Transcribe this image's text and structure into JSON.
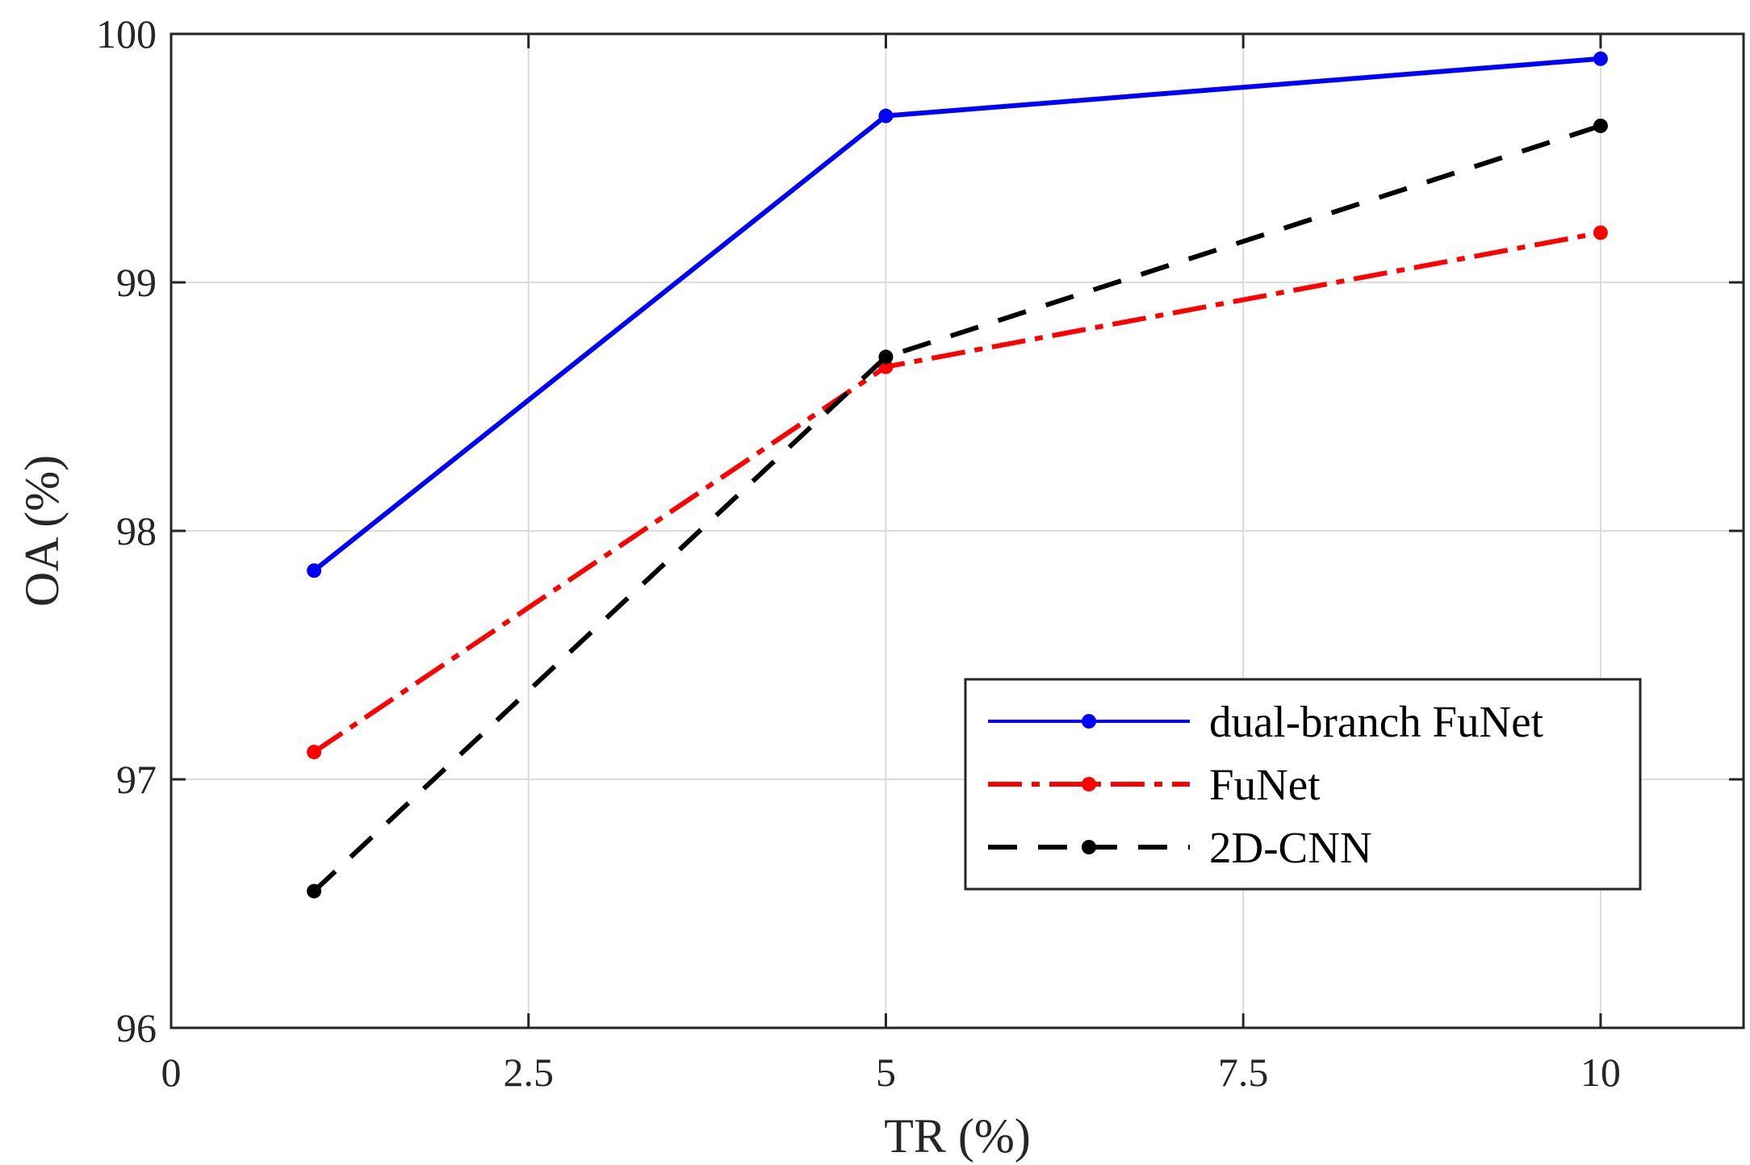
{
  "chart_data": {
    "type": "line",
    "title": "",
    "xlabel": "TR (%)",
    "ylabel": "OA (%)",
    "xlim": [
      0,
      11
    ],
    "ylim": [
      96,
      100
    ],
    "grid": true,
    "legend_position": "bottom-right",
    "x_ticks": [
      0,
      2.5,
      5,
      7.5,
      10
    ],
    "x_tick_labels": [
      "0",
      "2.5",
      "5",
      "7.5",
      "10"
    ],
    "y_ticks": [
      96,
      97,
      98,
      99,
      100
    ],
    "y_tick_labels": [
      "96",
      "97",
      "98",
      "99",
      "100"
    ],
    "series": [
      {
        "name": "dual-branch FuNet",
        "color": "#0000ff",
        "style": "solid",
        "x": [
          1,
          5,
          10
        ],
        "y": [
          97.84,
          99.67,
          99.9
        ]
      },
      {
        "name": "FuNet",
        "color": "#ff0000",
        "style": "dash-dot",
        "x": [
          1,
          5,
          10
        ],
        "y": [
          97.11,
          98.66,
          99.2
        ]
      },
      {
        "name": "2D-CNN",
        "color": "#000000",
        "style": "dashed",
        "x": [
          1,
          5,
          10
        ],
        "y": [
          96.55,
          98.7,
          99.63
        ]
      }
    ]
  }
}
